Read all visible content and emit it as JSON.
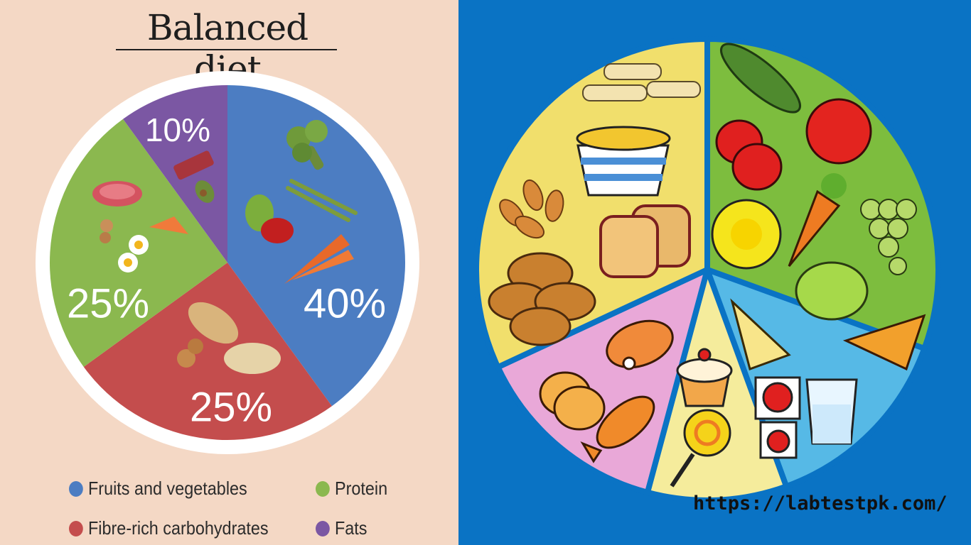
{
  "chart_data": {
    "type": "pie",
    "title": "Balanced diet",
    "slices": [
      {
        "label": "Fruits and vegetables",
        "value": 40,
        "value_label": "40%",
        "color": "#4c7dc2"
      },
      {
        "label": "Fibre-rich carbohydrates",
        "value": 25,
        "value_label": "25%",
        "color": "#c44d4d"
      },
      {
        "label": "Protein",
        "value": 25,
        "value_label": "25%",
        "color": "#8bb84f"
      },
      {
        "label": "Fats",
        "value": 10,
        "value_label": "10%",
        "color": "#7b57a3"
      }
    ],
    "legend_placement": "bottom"
  },
  "illustration": {
    "background_color": "#0a73c4",
    "sections": [
      {
        "name": "carbohydrates",
        "color": "#f1df6c"
      },
      {
        "name": "fruits and vegetables",
        "color": "#7dbd3e"
      },
      {
        "name": "dairy",
        "color": "#56b9e6"
      },
      {
        "name": "sweets",
        "color": "#f5ec9c"
      },
      {
        "name": "protein",
        "color": "#e9a8d8"
      }
    ]
  },
  "footer": {
    "url": "https://labtestpk.com/"
  }
}
